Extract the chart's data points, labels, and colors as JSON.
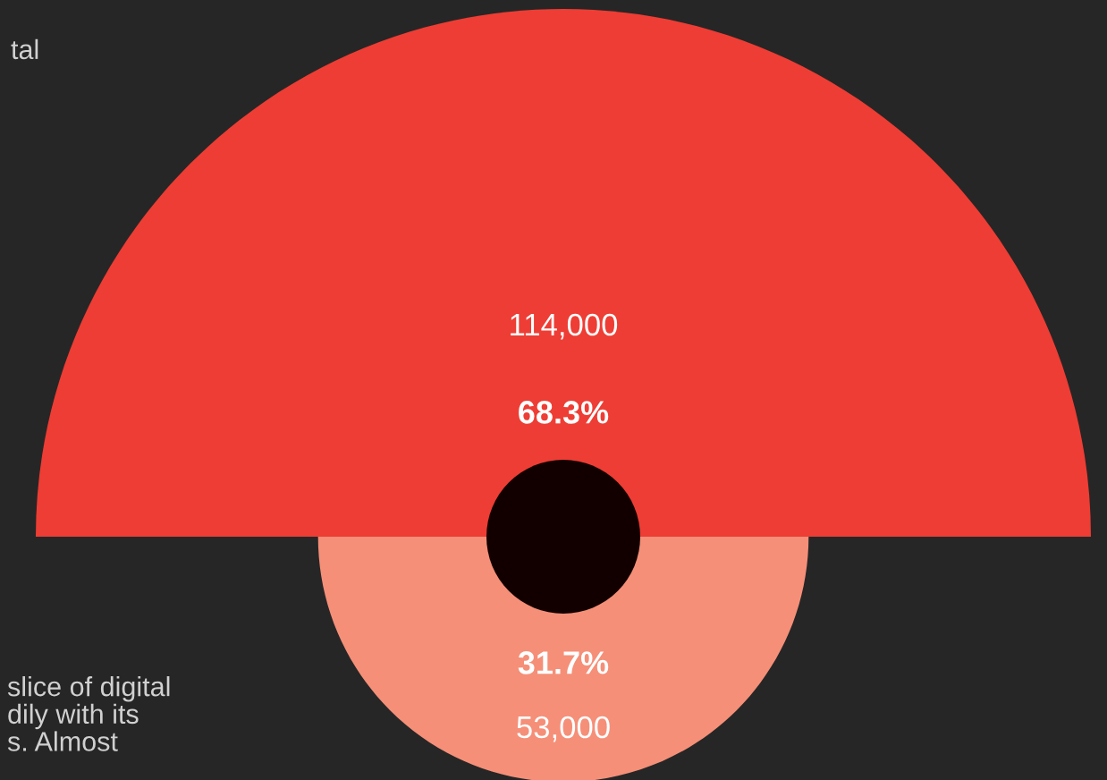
{
  "chart_data": {
    "type": "other",
    "categories": [
      null,
      null
    ],
    "values": [
      114000,
      53000
    ],
    "value_labels": [
      "114,000",
      "53,000"
    ],
    "colors": [
      "#ee3d34",
      "#f58f78"
    ],
    "annotations": [
      "tal",
      "68.3%",
      "31.7%",
      "slice of digital\ndily with its\ns. Almost"
    ]
  }
}
